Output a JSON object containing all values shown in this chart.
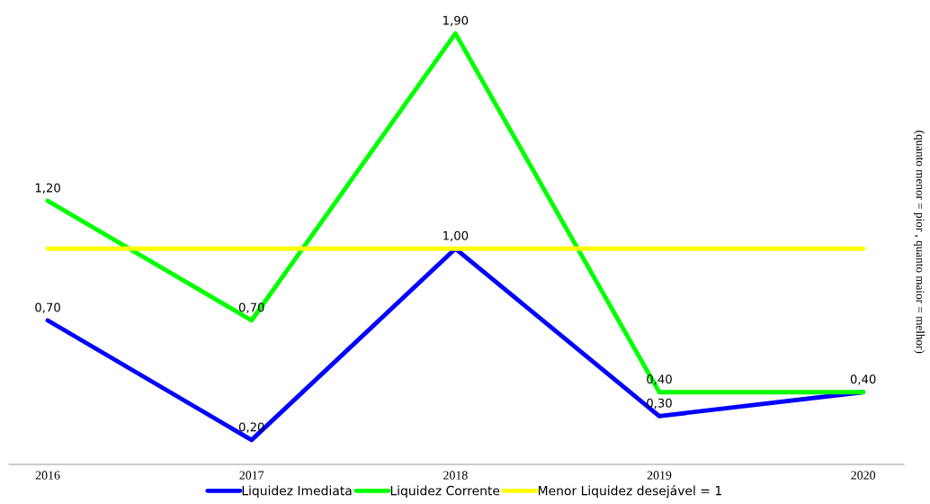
{
  "chart_data": {
    "type": "line",
    "categories": [
      "2016",
      "2017",
      "2018",
      "2019",
      "2020"
    ],
    "series": [
      {
        "name": "Liquidez Imediata",
        "color": "#0000ff",
        "values": [
          0.7,
          0.2,
          1.0,
          0.3,
          0.4
        ],
        "value_labels": [
          "0,70",
          "0,20",
          "1,00",
          "0,30",
          null
        ]
      },
      {
        "name": "Liquidez Corrente",
        "color": "#00ff00",
        "values": [
          1.2,
          0.7,
          1.9,
          0.4,
          0.4
        ],
        "value_labels": [
          "1,20",
          "0,70",
          "1,90",
          "0,40",
          "0,40"
        ]
      },
      {
        "name": "Menor Liquidez desejável = 1",
        "color": "#ffff00",
        "values": [
          1,
          1,
          1,
          1,
          1
        ]
      }
    ],
    "y2label": "(quanto menor = pior , quanto maior = melhor)",
    "tick_labels": "x",
    "grid": false,
    "legend": "bottom",
    "marker": "none",
    "line_style": "solid"
  }
}
